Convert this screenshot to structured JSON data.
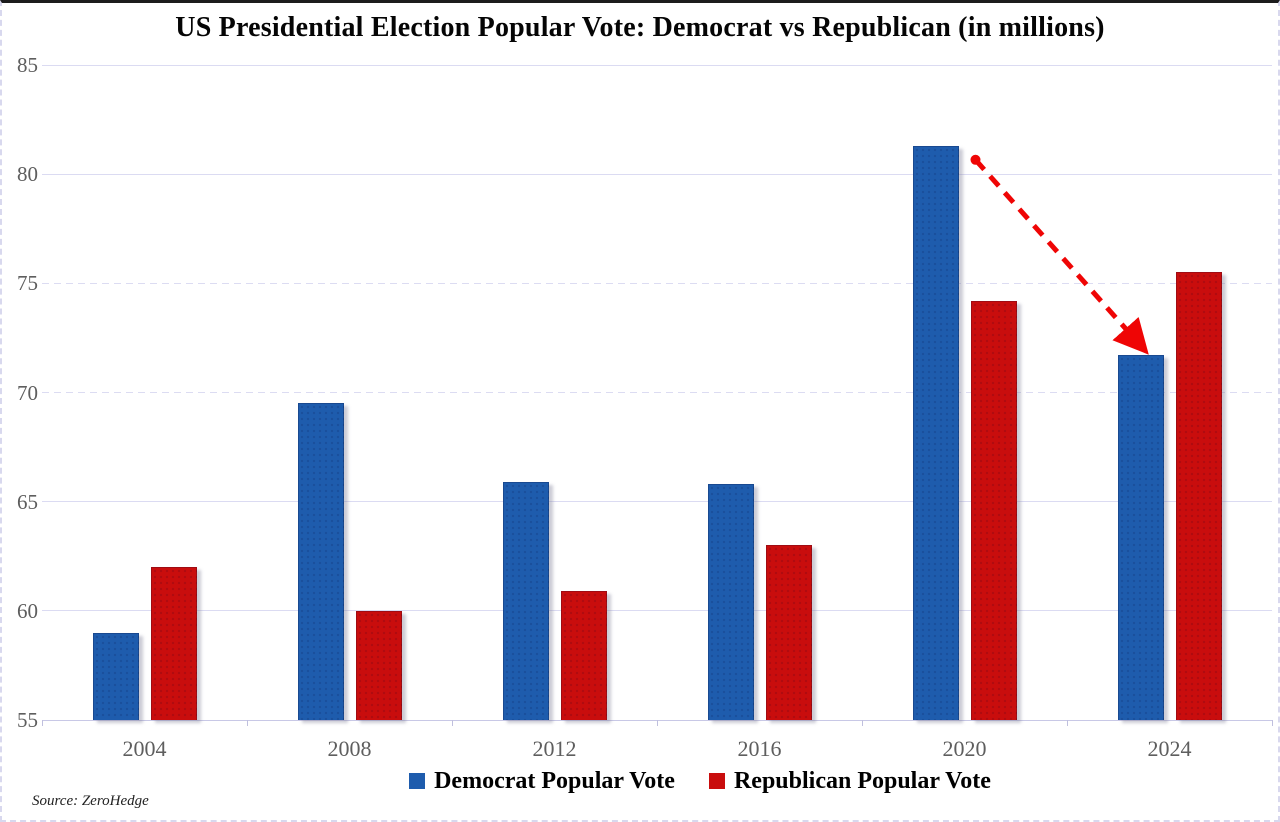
{
  "chart": {
    "title": "US Presidential Election Popular Vote: Democrat vs Republican (in millions)",
    "source": "Source: ZeroHedge",
    "legend": [
      {
        "label": "Democrat Popular Vote",
        "color": "#1e5cad"
      },
      {
        "label": "Republican Popular Vote",
        "color": "#c90d0d"
      }
    ]
  },
  "chart_data": {
    "type": "bar",
    "title": "US Presidential Election Popular Vote: Democrat vs Republican (in millions)",
    "xlabel": "",
    "ylabel": "",
    "categories": [
      "2004",
      "2008",
      "2012",
      "2016",
      "2020",
      "2024"
    ],
    "series": [
      {
        "name": "Democrat Popular Vote",
        "color": "#1e5cad",
        "values": [
          59.0,
          69.5,
          65.9,
          65.8,
          81.3,
          71.7
        ]
      },
      {
        "name": "Republican Popular Vote",
        "color": "#c90d0d",
        "values": [
          62.0,
          60.0,
          60.9,
          63.0,
          74.2,
          75.5
        ]
      }
    ],
    "ylim": [
      55,
      85
    ],
    "ytick_step": 5,
    "yticks": [
      55,
      60,
      65,
      70,
      75,
      80,
      85
    ],
    "dashed_gridlines": [
      70,
      75
    ],
    "grid": true,
    "legend_position": "bottom",
    "annotation": {
      "type": "dashed-arrow",
      "color": "#ef0505",
      "from": {
        "series": 0,
        "category": "2020"
      },
      "to": {
        "series": 0,
        "category": "2024"
      }
    }
  }
}
